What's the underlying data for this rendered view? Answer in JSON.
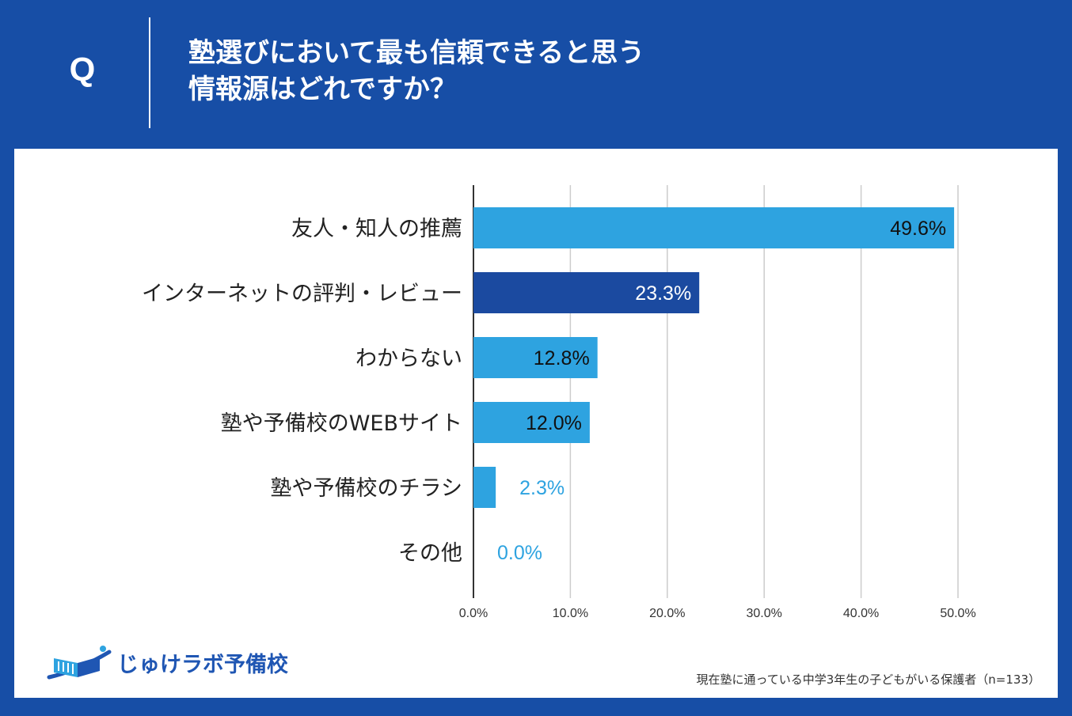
{
  "header": {
    "q_label": "Q",
    "question_line1": "塾選びにおいて最も信頼できると思う",
    "question_line2": "情報源はどれですか？"
  },
  "colors": {
    "background": "#174ea6",
    "bar_light": "#2ea3e0",
    "bar_dark": "#1b4aa0",
    "grid": "#cccccc",
    "axis": "#333333"
  },
  "chart_data": {
    "type": "bar",
    "orientation": "horizontal",
    "title": "塾選びにおいて最も信頼できると思う情報源はどれですか？",
    "categories": [
      "友人・知人の推薦",
      "インターネットの評判・レビュー",
      "わからない",
      "塾や予備校のWEBサイト",
      "塾や予備校のチラシ",
      "その他"
    ],
    "values": [
      49.6,
      23.3,
      12.8,
      12.0,
      2.3,
      0.0
    ],
    "value_labels": [
      "49.6%",
      "23.3%",
      "12.8%",
      "12.0%",
      "2.3%",
      "0.0%"
    ],
    "highlight_index": 1,
    "xlim": [
      0,
      50
    ],
    "xticks": [
      0,
      10,
      20,
      30,
      40,
      50
    ],
    "xtick_labels": [
      "0.0%",
      "10.0%",
      "20.0%",
      "30.0%",
      "40.0%",
      "50.0%"
    ],
    "xlabel": "",
    "ylabel": "",
    "grid": true
  },
  "logo": {
    "text": "じゅけラボ予備校",
    "icon": "open-book-icon"
  },
  "footnote": "現在塾に通っている中学3年生の子どもがいる保護者（n=133）"
}
